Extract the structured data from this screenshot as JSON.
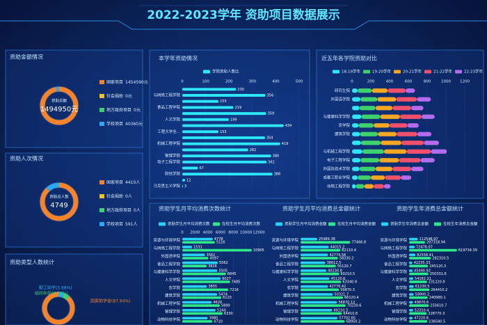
{
  "title": "2022-2023学年 资助项目数据展示",
  "chart_data": [
    {
      "type": "donut",
      "title": "资助金额情况",
      "center_label": "资助总额",
      "center_value": "1494950元",
      "categories": [
        "国家项目",
        "社会捐助",
        "地方政府项目",
        "学校项目"
      ],
      "values": [
        1454590,
        0,
        0,
        40360
      ],
      "value_labels": [
        "1454590元",
        "0元",
        "0元",
        "40360元"
      ],
      "colors": [
        "#f5832a",
        "#f3c12b",
        "#3fd16b",
        "#2aa8f0"
      ]
    },
    {
      "type": "donut",
      "title": "资助人次情况",
      "center_label": "资助总人数",
      "center_value": 4749,
      "categories": [
        "国家项目",
        "社会捐助",
        "地方政府项目",
        "学校项目"
      ],
      "values": [
        4410,
        0,
        0,
        591
      ],
      "value_labels": [
        "4410人",
        "0人",
        "0人",
        "591人"
      ],
      "colors": [
        "#f5832a",
        "#f3c12b",
        "#3fd16b",
        "#2aa8f0"
      ]
    },
    {
      "type": "pie",
      "title": "资助类型人数统计",
      "values": [
        5.68,
        6.38,
        87.94
      ],
      "value_labels": [
        "勤工助学(5.68%)",
        "临时补助(6.38%)",
        "国家助学金(87.94%)"
      ],
      "colors": [
        "#2aa8f0",
        "#3fd16b",
        "#f5832a"
      ]
    },
    {
      "type": "bar",
      "orientation": "horizontal",
      "title": "本学年资助情况",
      "categories": [
        null,
        "与网络工程学院",
        null,
        "食品工程学院",
        null,
        "人文学院",
        null,
        "工程大学全...",
        null,
        "机械工程学院",
        null,
        "管理学院",
        "电子工程学院",
        null,
        "财经学院",
        null,
        "马克思主义学院"
      ],
      "series": [
        {
          "name": "学院资助人数比",
          "color": "#2ee6f6",
          "values": [
            230,
            356,
            155,
            219,
            359,
            199,
            434,
            155,
            354,
            419,
            282,
            380,
            361,
            67,
            386,
            12,
            3
          ]
        }
      ],
      "xlim": [
        0,
        500
      ],
      "xticks": [
        0,
        100,
        200,
        300,
        400,
        500
      ]
    },
    {
      "type": "bar",
      "orientation": "horizontal",
      "stacked": true,
      "title": "近五年各学院资助对比",
      "categories": [
        "研究生院",
        "外国语学院",
        null,
        "与健康科学学院",
        "农学院",
        "建筑学院",
        null,
        "与机械工程学院",
        "电子工程学院",
        "外国际技术学院",
        "成都工职业学院",
        "动物工程学院"
      ],
      "series": [
        {
          "name": "18-19学年",
          "color": "#2ee6f6",
          "values": [
            60,
            90,
            80,
            100,
            70,
            85,
            95,
            110,
            90,
            80,
            60,
            40
          ]
        },
        {
          "name": "19-20学年",
          "color": "#3fd16b",
          "values": [
            150,
            180,
            170,
            200,
            160,
            190,
            210,
            230,
            200,
            170,
            140,
            90
          ]
        },
        {
          "name": "20-21学年",
          "color": "#f5a623",
          "values": [
            170,
            200,
            180,
            210,
            170,
            200,
            220,
            240,
            210,
            180,
            150,
            100
          ]
        },
        {
          "name": "21-22学年",
          "color": "#f0506e",
          "values": [
            190,
            220,
            200,
            230,
            190,
            220,
            240,
            260,
            230,
            200,
            170,
            110
          ]
        },
        {
          "name": "22-23学年",
          "color": "#b36cf0",
          "values": [
            100,
            150,
            130,
            140,
            120,
            150,
            160,
            170,
            150,
            130,
            110,
            70
          ]
        }
      ],
      "xlim": [
        0,
        1200
      ],
      "xticks": [
        0,
        200,
        400,
        600,
        800,
        1000,
        1200
      ]
    },
    {
      "type": "bar",
      "orientation": "horizontal",
      "title": "资助学生月平均消费次数统计",
      "categories": [
        "资源与环境学院",
        "与网络工程学院",
        "外国语学院",
        "食品工程学院",
        "与健康科学学院",
        "人文学院",
        "农学院",
        "建筑学院",
        "机械工程学院",
        "管理学院",
        "动物科技学院"
      ],
      "series": [
        {
          "name": "资助学生月平均消费次数",
          "color": "#29d3f5",
          "values": [
            4778,
            1531,
            3562,
            5562,
            5505,
            6027,
            3855,
            5474,
            4620,
            5240,
            3980
          ]
        },
        {
          "name": "在校生月平均消费次数",
          "color": "#2ee88a",
          "values": [
            5116,
            10905,
            4097,
            3826,
            6845,
            7485,
            7216,
            6120,
            5890,
            6330,
            4710
          ]
        }
      ],
      "xlim": [
        0,
        12000
      ],
      "xticks": [
        0,
        2000,
        4000,
        6000,
        8000,
        10000,
        12000
      ]
    },
    {
      "type": "bar",
      "orientation": "horizontal",
      "title": "资助学生月平均消费总金额统计",
      "categories": [
        "资源与环境学院",
        "与网络工程学院",
        "外国语学院",
        "食品工程学院",
        "与健康科学学院",
        "人文学院",
        "农学院",
        "建筑学院",
        "机械工程学院",
        "管理学院",
        "动物科技学院"
      ],
      "series": [
        {
          "name": "资助学生月平均消费金额",
          "color": "#29d3f5",
          "values": [
            25989.38,
            44015.2,
            42774.56,
            38612.5,
            40230.8,
            45120.6,
            42776.42,
            50321.7,
            56870.12,
            49210.3,
            57702.65
          ]
        },
        {
          "name": "在校生月平均消费金额",
          "color": "#2ee88a",
          "values": [
            77466.8,
            62110.4,
            58330.2,
            55120.7,
            60210.5,
            63340.9,
            59870.3,
            66120.4,
            70230.6,
            64410.8,
            68950.2
          ]
        }
      ],
      "xlim": [
        0,
        90000
      ]
    },
    {
      "type": "bar",
      "orientation": "horizontal",
      "title": "资助学生年消费总金额统计",
      "categories": [
        "资源与环境学院",
        "与网络工程学院",
        "外国语学院",
        "食品工程学院",
        "与健康科学学院",
        "人文学院",
        "农学院",
        "建筑学院",
        "机械工程学院",
        "管理学院",
        "动物科技学院"
      ],
      "series": [
        {
          "name": "资助学生年消费总金额",
          "color": "#29d3f5",
          "values": [
            112548.97,
            72476.07,
            82558.41,
            42235.33,
            45490.92,
            54182.21,
            61230.5,
            58900.2,
            49870.6,
            52310.4,
            47220.8
          ]
        },
        {
          "name": "在校生年消费总金额",
          "color": "#2ee88a",
          "values": [
            207318.94,
            619734.39,
            282310.5,
            245120.3,
            250331.6,
            231220.9,
            264410.2,
            240980.1,
            255610.7,
            228770.3,
            236540.5
          ]
        }
      ],
      "xlim": [
        0,
        720000
      ]
    }
  ]
}
